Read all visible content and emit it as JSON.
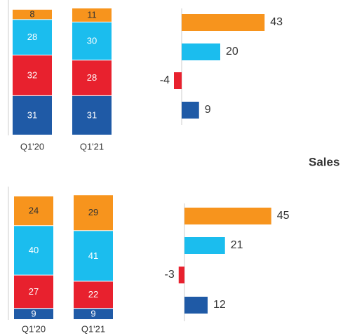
{
  "chart_data": [
    {
      "type": "stacked_bar",
      "categories": [
        "Q1'20",
        "Q1'21"
      ],
      "ylim": [
        0,
        100
      ],
      "series": [
        {
          "color": "#1f5aa6",
          "values": [
            31,
            31
          ]
        },
        {
          "color": "#e8212e",
          "values": [
            32,
            28
          ]
        },
        {
          "color": "#1bbdee",
          "values": [
            28,
            30
          ]
        },
        {
          "color": "#f7941d",
          "values": [
            8,
            11
          ]
        }
      ]
    },
    {
      "type": "hbar",
      "xlim": [
        -10,
        50
      ],
      "values": [
        43,
        20,
        -4,
        9
      ],
      "colors": [
        "#f7941d",
        "#1bbdee",
        "#e8212e",
        "#1f5aa6"
      ]
    },
    {
      "type": "stacked_bar",
      "categories": [
        "Q1'20",
        "Q1'21"
      ],
      "ylim": [
        0,
        100
      ],
      "series": [
        {
          "color": "#1f5aa6",
          "values": [
            9,
            9
          ]
        },
        {
          "color": "#e8212e",
          "values": [
            27,
            22
          ]
        },
        {
          "color": "#1bbdee",
          "values": [
            40,
            41
          ]
        },
        {
          "color": "#f7941d",
          "values": [
            24,
            29
          ]
        }
      ]
    },
    {
      "type": "hbar",
      "xlim": [
        -10,
        50
      ],
      "values": [
        45,
        21,
        -3,
        12
      ],
      "colors": [
        "#f7941d",
        "#1bbdee",
        "#e8212e",
        "#1f5aa6"
      ]
    }
  ],
  "side_label": "Sales"
}
